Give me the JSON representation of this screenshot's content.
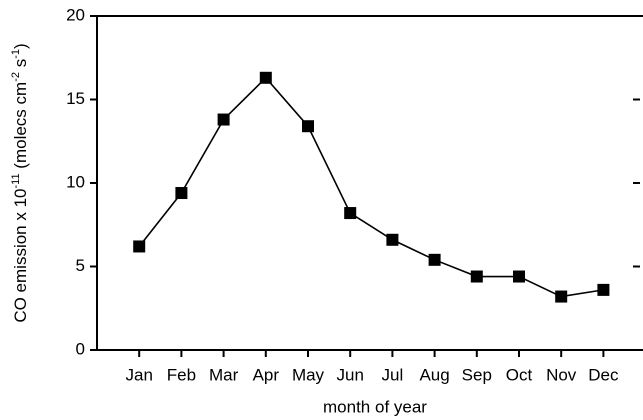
{
  "chart_data": {
    "type": "line",
    "xlabel": "month of year",
    "ylabel": [
      "CO emission x 10",
      "-11",
      " (molecs cm",
      "-2",
      " s",
      "-1",
      ")"
    ],
    "categories": [
      "Jan",
      "Feb",
      "Mar",
      "Apr",
      "May",
      "Jun",
      "Jul",
      "Aug",
      "Sep",
      "Oct",
      "Nov",
      "Dec"
    ],
    "series": [
      {
        "name": "CO emission",
        "color": "#000000",
        "values": [
          6.2,
          9.4,
          13.8,
          16.3,
          13.4,
          8.2,
          6.6,
          5.4,
          4.4,
          4.4,
          3.2,
          3.6
        ]
      }
    ],
    "ylim": [
      0,
      20
    ],
    "yticks": [
      0,
      5,
      10,
      15,
      20
    ],
    "grid": false
  }
}
